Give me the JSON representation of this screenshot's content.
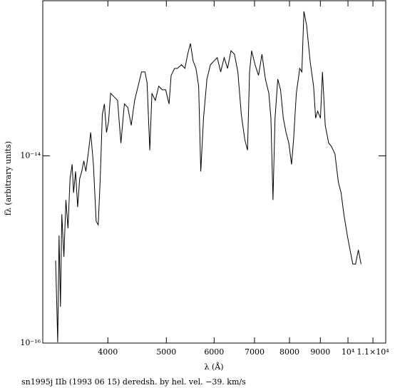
{
  "chart_data": {
    "type": "line",
    "xlabel": "λ (Å)",
    "ylabel": "fλ (arbitrary units)",
    "caption": "sn1995j IIb (1993 06 15) deredsh. by hel. vel.   −39. km/s",
    "xscale": "log",
    "yscale": "log",
    "color": "#000000",
    "xlim": [
      3120,
      11550
    ],
    "ylim": [
      1e-16,
      4.55e-13
    ],
    "xticks": [
      4000,
      5000,
      6000,
      7000,
      8000,
      9000,
      {
        "value": 10000,
        "label": "10⁴"
      },
      {
        "value": 11000,
        "label": "1.1×10⁴"
      }
    ],
    "yticks": [
      {
        "value": 1e-14,
        "label": "10⁻¹⁴"
      },
      {
        "value": 1e-16,
        "label": "10⁻¹⁶"
      }
    ],
    "x": [
      3277,
      3303,
      3320,
      3338,
      3355,
      3382,
      3408,
      3435,
      3462,
      3490,
      3509,
      3536,
      3564,
      3592,
      3620,
      3649,
      3678,
      3717,
      3746,
      3785,
      3825,
      3855,
      3885,
      3916,
      3947,
      3979,
      4010,
      4042,
      4095,
      4150,
      4204,
      4260,
      4316,
      4373,
      4430,
      4489,
      4548,
      4608,
      4645,
      4694,
      4732,
      4794,
      4857,
      4921,
      4986,
      5052,
      5092,
      5159,
      5214,
      5297,
      5367,
      5424,
      5481,
      5539,
      5598,
      5656,
      5702,
      5762,
      5838,
      5915,
      5993,
      6072,
      6152,
      6234,
      6316,
      6399,
      6484,
      6569,
      6656,
      6744,
      6815,
      6869,
      6924,
      7015,
      7108,
      7202,
      7297,
      7393,
      7452,
      7511,
      7570,
      7650,
      7731,
      7813,
      7895,
      7979,
      8063,
      8126,
      8211,
      8320,
      8386,
      8452,
      8541,
      8654,
      8770,
      8839,
      8908,
      9002,
      9073,
      9169,
      9290,
      9389,
      9514,
      9640,
      9741,
      9844,
      9975,
      10079,
      10186,
      10293,
      10404,
      10512
    ],
    "values": [
      7.62e-16,
      1.02e-16,
      1.41e-15,
      2.44e-16,
      2.38e-15,
      8.32e-16,
      3.38e-15,
      1.68e-15,
      5.71e-15,
      8.11e-15,
      4.03e-15,
      6.81e-15,
      2.83e-15,
      5.71e-15,
      6.81e-15,
      8.85e-15,
      6.81e-15,
      1.15e-14,
      1.78e-14,
      8.11e-15,
      2e-15,
      1.83e-15,
      5.71e-15,
      2.76e-14,
      3.59e-14,
      1.78e-14,
      2.32e-14,
      4.67e-14,
      4.28e-14,
      3.92e-14,
      1.37e-14,
      3.59e-14,
      3.29e-14,
      2.12e-14,
      3.92e-14,
      5.56e-14,
      7.89e-14,
      7.89e-14,
      6.07e-14,
      1.15e-14,
      4.67e-14,
      3.92e-14,
      5.56e-14,
      5.09e-14,
      5.09e-14,
      3.59e-14,
      7.23e-14,
      8.61e-14,
      8.61e-14,
      9.4e-14,
      8.61e-14,
      1.22e-13,
      1.59e-13,
      1.03e-13,
      8.61e-14,
      5.56e-14,
      6.81e-15,
      2.53e-14,
      6.62e-14,
      9.4e-14,
      1.03e-13,
      1.12e-13,
      7.89e-14,
      1.12e-13,
      8.61e-14,
      1.33e-13,
      1.22e-13,
      7.89e-14,
      2.76e-14,
      1.5e-14,
      1.15e-14,
      7.89e-14,
      1.33e-13,
      9.4e-14,
      7.23e-14,
      1.22e-13,
      6.62e-14,
      4.67e-14,
      2.53e-14,
      3.38e-15,
      2.53e-14,
      6.62e-14,
      5.09e-14,
      2.53e-14,
      1.78e-14,
      1.37e-14,
      8.11e-15,
      1.5e-14,
      4.67e-14,
      8.61e-14,
      7.89e-14,
      3.5e-13,
      2.47e-13,
      1.03e-13,
      5.56e-14,
      2.53e-14,
      3.01e-14,
      2.53e-14,
      7.89e-14,
      2.12e-14,
      1.37e-14,
      1.26e-14,
      1.05e-14,
      5.23e-15,
      4.03e-15,
      2.38e-15,
      1.41e-15,
      9.91e-16,
      6.98e-16,
      6.98e-16,
      9.91e-16,
      6.98e-16
    ]
  }
}
